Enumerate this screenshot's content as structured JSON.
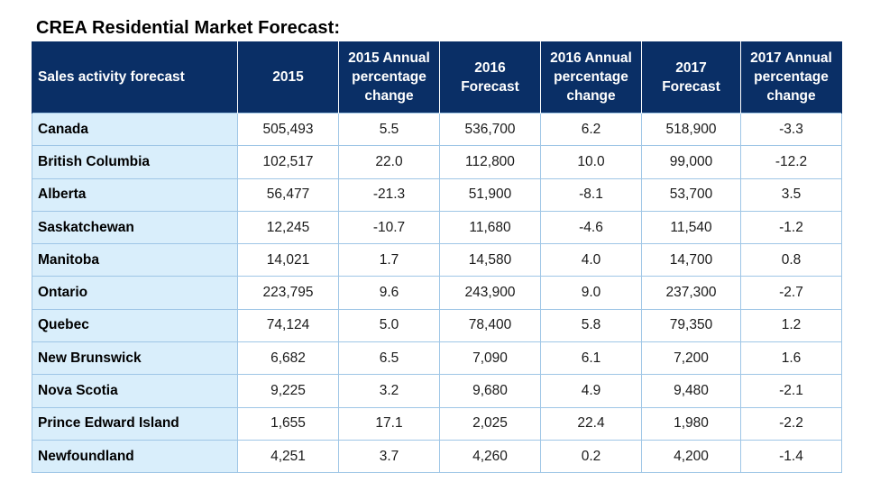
{
  "title": "CREA Residential Market Forecast:",
  "headers": [
    "Sales activity forecast",
    "2015",
    "2015 Annual\npercentage\nchange",
    "2016\nForecast",
    "2016 Annual\npercentage\nchange",
    "2017\nForecast",
    "2017 Annual\npercentage\nchange"
  ],
  "rows": [
    [
      "Canada",
      "505,493",
      "5.5",
      "536,700",
      "6.2",
      "518,900",
      "-3.3"
    ],
    [
      "British Columbia",
      "102,517",
      "22.0",
      "112,800",
      "10.0",
      "99,000",
      "-12.2"
    ],
    [
      "Alberta",
      "56,477",
      "-21.3",
      "51,900",
      "-8.1",
      "53,700",
      "3.5"
    ],
    [
      "Saskatchewan",
      "12,245",
      "-10.7",
      "11,680",
      "-4.6",
      "11,540",
      "-1.2"
    ],
    [
      "Manitoba",
      "14,021",
      "1.7",
      "14,580",
      "4.0",
      "14,700",
      "0.8"
    ],
    [
      "Ontario",
      "223,795",
      "9.6",
      "243,900",
      "9.0",
      "237,300",
      "-2.7"
    ],
    [
      "Quebec",
      "74,124",
      "5.0",
      "78,400",
      "5.8",
      "79,350",
      "1.2"
    ],
    [
      "New Brunswick",
      "6,682",
      "6.5",
      "7,090",
      "6.1",
      "7,200",
      "1.6"
    ],
    [
      "Nova Scotia",
      "9,225",
      "3.2",
      "9,680",
      "4.9",
      "9,480",
      "-2.1"
    ],
    [
      "Prince Edward Island",
      "1,655",
      "17.1",
      "2,025",
      "22.4",
      "1,980",
      "-2.2"
    ],
    [
      "Newfoundland",
      "4,251",
      "3.7",
      "4,260",
      "0.2",
      "4,200",
      "-1.4"
    ]
  ],
  "colors": {
    "header_background": "#0a2f66",
    "header_text": "#ffffff",
    "first_column_background": "#d9eefb",
    "grid_lines": "#9fc6e6"
  }
}
